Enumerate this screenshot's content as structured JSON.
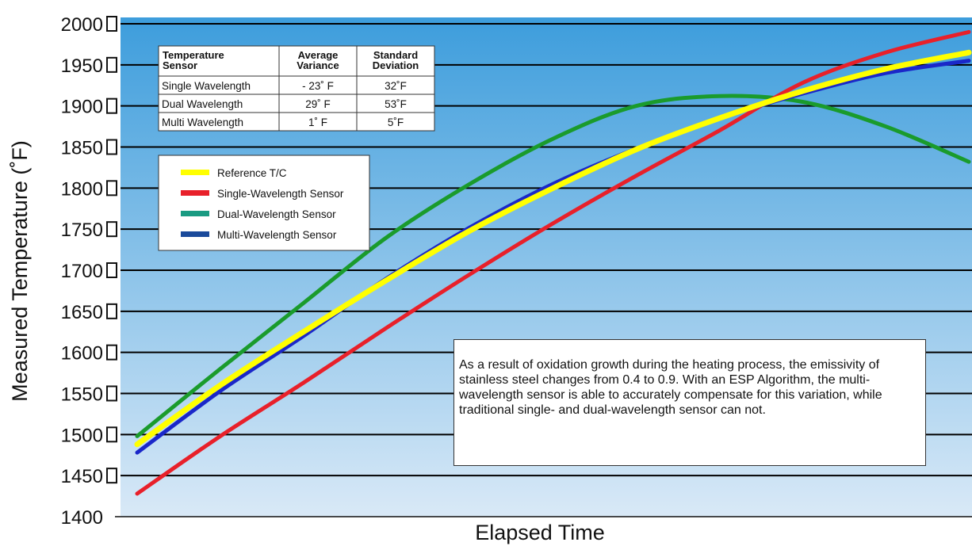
{
  "chart_data": {
    "type": "line",
    "title": "",
    "xlabel": "Elapsed Time",
    "ylabel": "Measured Temperature (˚F)",
    "ylim": [
      1400,
      2000
    ],
    "yticks": [
      "1400",
      "1450",
      "1500",
      "1550",
      "1600",
      "1650",
      "1700",
      "1750",
      "1800",
      "1850",
      "1900",
      "1950",
      "2000"
    ],
    "grid": true,
    "legend_position": "top-left",
    "x_normalized": true,
    "series": [
      {
        "name": "Reference T/C",
        "color": "#ffff00",
        "x": [
          0,
          0.1,
          0.2,
          0.3,
          0.4,
          0.5,
          0.6,
          0.7,
          0.8,
          0.9,
          1.0
        ],
        "y": [
          1488,
          1560,
          1625,
          1688,
          1748,
          1800,
          1847,
          1885,
          1918,
          1945,
          1965
        ]
      },
      {
        "name": "Single-Wavelength Sensor",
        "color": "#e8202a",
        "x": [
          0,
          0.1,
          0.2,
          0.3,
          0.4,
          0.5,
          0.6,
          0.7,
          0.8,
          0.9,
          1.0
        ],
        "y": [
          1428,
          1498,
          1563,
          1630,
          1695,
          1757,
          1815,
          1870,
          1928,
          1965,
          1990
        ]
      },
      {
        "name": "Dual-Wavelength Sensor",
        "color": "#1a9b2c",
        "x": [
          0,
          0.1,
          0.2,
          0.3,
          0.4,
          0.5,
          0.6,
          0.7,
          0.8,
          0.9,
          1.0
        ],
        "y": [
          1498,
          1580,
          1660,
          1740,
          1805,
          1860,
          1900,
          1912,
          1905,
          1875,
          1832
        ]
      },
      {
        "name": "Multi-Wavelength Sensor",
        "color": "#1a27c9",
        "x": [
          0,
          0.1,
          0.2,
          0.3,
          0.4,
          0.5,
          0.6,
          0.7,
          0.8,
          0.9,
          1.0
        ],
        "y": [
          1478,
          1553,
          1620,
          1690,
          1752,
          1805,
          1848,
          1885,
          1915,
          1940,
          1955
        ]
      }
    ]
  },
  "legend": {
    "items": [
      {
        "label": "Reference T/C",
        "color": "#ffff00"
      },
      {
        "label": "Single-Wavelength Sensor",
        "color": "#e8202a"
      },
      {
        "label": "Dual-Wavelength Sensor",
        "color": "#1a9b82"
      },
      {
        "label": "Multi-Wavelength Sensor",
        "color": "#1a4a9b"
      }
    ]
  },
  "stats_table": {
    "headers": [
      [
        "Temperature",
        "Sensor"
      ],
      [
        "Average",
        "Variance"
      ],
      [
        "Standard",
        "Deviation"
      ]
    ],
    "rows": [
      [
        "Single Wavelength",
        "- 23˚ F",
        "32˚F"
      ],
      [
        "Dual Wavelength",
        "29˚ F",
        "53˚F"
      ],
      [
        "Multi Wavelength",
        "1˚ F",
        "5˚F"
      ]
    ]
  },
  "note": {
    "text": "As a result of oxidation growth during the heating process, the emissivity of stainless steel changes from 0.4 to 0.9. With an ESP Algorithm, the multi-wavelength sensor is able to accurately compensate for this variation, while traditional single- and dual-wavelength sensor can not."
  },
  "colors": {
    "plot_top": "#3d9ddc",
    "plot_bottom": "#d9e9f7",
    "grid": "#000000"
  }
}
